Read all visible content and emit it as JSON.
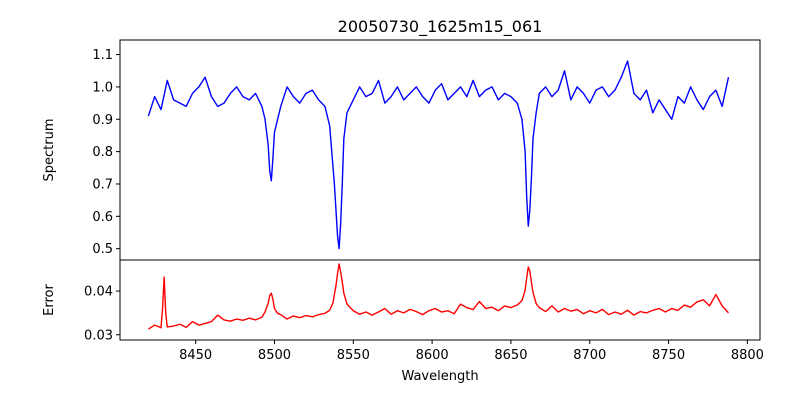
{
  "chart_data": [
    {
      "type": "line",
      "title": "20050730_1625m15_061",
      "ylabel": "Spectrum",
      "xlim": [
        8402,
        8808
      ],
      "ylim": [
        0.465,
        1.145
      ],
      "yticks": [
        0.5,
        0.6,
        0.7,
        0.8,
        0.9,
        1.0,
        1.1
      ],
      "ytick_labels": [
        "0.5",
        "0.6",
        "0.7",
        "0.8",
        "0.9",
        "1.0",
        "1.1"
      ],
      "series": [
        {
          "color": "#0000ff",
          "x": [
            8420,
            8424,
            8428,
            8432,
            8436,
            8440,
            8444,
            8448,
            8452,
            8456,
            8460,
            8464,
            8468,
            8472,
            8476,
            8480,
            8484,
            8488,
            8492,
            8494,
            8496,
            8497,
            8498,
            8499,
            8500,
            8502,
            8504,
            8508,
            8512,
            8516,
            8520,
            8524,
            8528,
            8532,
            8535,
            8537,
            8538,
            8539,
            8540,
            8541,
            8542,
            8543,
            8544,
            8546,
            8550,
            8554,
            8558,
            8562,
            8566,
            8570,
            8574,
            8578,
            8582,
            8586,
            8590,
            8594,
            8598,
            8602,
            8606,
            8610,
            8614,
            8618,
            8622,
            8626,
            8630,
            8634,
            8638,
            8642,
            8646,
            8650,
            8654,
            8657,
            8659,
            8660,
            8661,
            8662,
            8663,
            8664,
            8666,
            8668,
            8672,
            8676,
            8680,
            8684,
            8688,
            8692,
            8696,
            8700,
            8704,
            8708,
            8712,
            8716,
            8720,
            8724,
            8728,
            8732,
            8736,
            8740,
            8744,
            8748,
            8752,
            8756,
            8760,
            8764,
            8768,
            8772,
            8776,
            8780,
            8784,
            8788
          ],
          "y": [
            0.91,
            0.97,
            0.93,
            1.02,
            0.96,
            0.95,
            0.94,
            0.98,
            1.0,
            1.03,
            0.97,
            0.94,
            0.95,
            0.98,
            1.0,
            0.97,
            0.96,
            0.98,
            0.94,
            0.9,
            0.82,
            0.74,
            0.71,
            0.78,
            0.86,
            0.9,
            0.94,
            1.0,
            0.97,
            0.95,
            0.98,
            0.99,
            0.96,
            0.94,
            0.88,
            0.76,
            0.7,
            0.62,
            0.54,
            0.5,
            0.58,
            0.7,
            0.84,
            0.92,
            0.96,
            1.0,
            0.97,
            0.98,
            1.02,
            0.95,
            0.97,
            1.0,
            0.96,
            0.98,
            1.0,
            0.97,
            0.95,
            0.99,
            1.01,
            0.96,
            0.98,
            1.0,
            0.97,
            1.02,
            0.97,
            0.99,
            1.0,
            0.96,
            0.98,
            0.97,
            0.95,
            0.9,
            0.8,
            0.66,
            0.57,
            0.62,
            0.72,
            0.84,
            0.92,
            0.98,
            1.0,
            0.97,
            0.99,
            1.05,
            0.96,
            1.0,
            0.98,
            0.95,
            0.99,
            1.0,
            0.97,
            0.99,
            1.03,
            1.08,
            0.98,
            0.96,
            0.99,
            0.92,
            0.96,
            0.93,
            0.9,
            0.97,
            0.95,
            1.0,
            0.96,
            0.93,
            0.97,
            0.99,
            0.94,
            1.03
          ]
        }
      ]
    },
    {
      "type": "line",
      "ylabel": "Error",
      "xlabel": "Wavelength",
      "xlim": [
        8402,
        8808
      ],
      "ylim": [
        0.0288,
        0.0471
      ],
      "xticks": [
        8450,
        8500,
        8550,
        8600,
        8650,
        8700,
        8750,
        8800
      ],
      "xtick_labels": [
        "8450",
        "8500",
        "8550",
        "8600",
        "8650",
        "8700",
        "8750",
        "8800"
      ],
      "yticks": [
        0.03,
        0.04
      ],
      "ytick_labels": [
        "0.03",
        "0.04"
      ],
      "series": [
        {
          "color": "#ff0000",
          "x": [
            8420,
            8424,
            8428,
            8429,
            8430,
            8431,
            8432,
            8436,
            8440,
            8444,
            8448,
            8452,
            8456,
            8460,
            8464,
            8468,
            8472,
            8476,
            8480,
            8484,
            8488,
            8492,
            8494,
            8496,
            8497,
            8498,
            8499,
            8500,
            8502,
            8504,
            8508,
            8512,
            8516,
            8520,
            8524,
            8528,
            8532,
            8535,
            8537,
            8538,
            8539,
            8540,
            8541,
            8542,
            8543,
            8544,
            8546,
            8550,
            8554,
            8558,
            8562,
            8566,
            8570,
            8574,
            8578,
            8582,
            8586,
            8590,
            8594,
            8598,
            8602,
            8606,
            8610,
            8614,
            8618,
            8622,
            8626,
            8630,
            8634,
            8638,
            8642,
            8646,
            8650,
            8654,
            8657,
            8659,
            8660,
            8661,
            8662,
            8663,
            8664,
            8666,
            8668,
            8672,
            8676,
            8680,
            8684,
            8688,
            8692,
            8696,
            8700,
            8704,
            8708,
            8712,
            8716,
            8720,
            8724,
            8728,
            8732,
            8736,
            8740,
            8744,
            8748,
            8752,
            8756,
            8760,
            8764,
            8768,
            8772,
            8776,
            8780,
            8784,
            8788
          ],
          "y": [
            0.0313,
            0.0322,
            0.0316,
            0.036,
            0.0432,
            0.035,
            0.0318,
            0.032,
            0.0324,
            0.0317,
            0.033,
            0.0322,
            0.0326,
            0.033,
            0.0345,
            0.0334,
            0.0331,
            0.0336,
            0.0333,
            0.0338,
            0.0334,
            0.034,
            0.0352,
            0.0372,
            0.039,
            0.0395,
            0.0381,
            0.036,
            0.0349,
            0.0346,
            0.0336,
            0.0343,
            0.0339,
            0.0344,
            0.0341,
            0.0346,
            0.0349,
            0.0356,
            0.0372,
            0.0392,
            0.0412,
            0.044,
            0.0462,
            0.0443,
            0.0421,
            0.0395,
            0.037,
            0.0355,
            0.0347,
            0.0352,
            0.0345,
            0.0352,
            0.036,
            0.0347,
            0.0355,
            0.035,
            0.0358,
            0.0353,
            0.0346,
            0.0355,
            0.036,
            0.0352,
            0.0355,
            0.0348,
            0.037,
            0.0362,
            0.0358,
            0.0376,
            0.036,
            0.0363,
            0.0355,
            0.0366,
            0.0362,
            0.0368,
            0.0378,
            0.0402,
            0.043,
            0.0455,
            0.0446,
            0.042,
            0.0397,
            0.0371,
            0.0362,
            0.0353,
            0.0366,
            0.0352,
            0.036,
            0.0354,
            0.0358,
            0.0348,
            0.0355,
            0.035,
            0.0358,
            0.0346,
            0.0352,
            0.0347,
            0.0356,
            0.0345,
            0.0353,
            0.035,
            0.0356,
            0.036,
            0.0352,
            0.036,
            0.0356,
            0.0368,
            0.0363,
            0.0375,
            0.038,
            0.0366,
            0.0392,
            0.0366,
            0.035
          ]
        }
      ]
    }
  ]
}
